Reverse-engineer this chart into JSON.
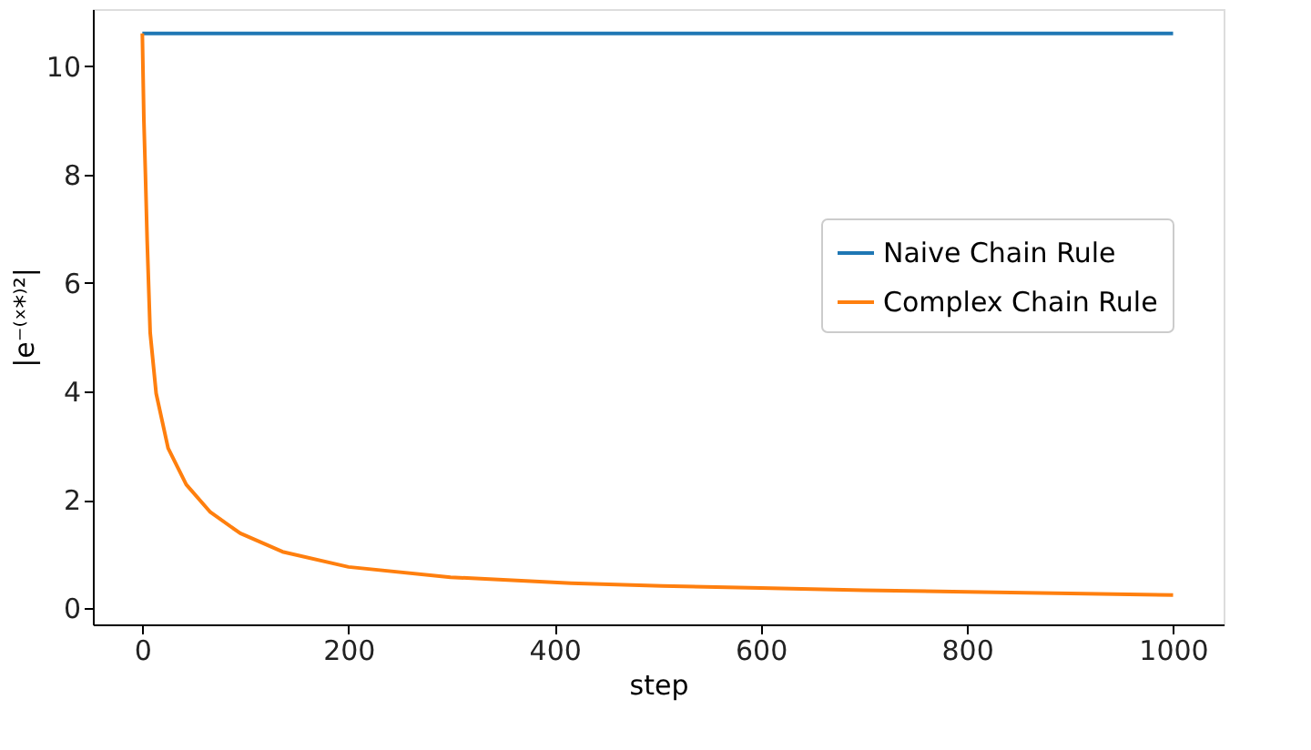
{
  "chart_data": {
    "type": "line",
    "xlabel": "step",
    "ylabel": "|e⁻⁽ˣ*⁾²|",
    "xlim": [
      -48,
      1049
    ],
    "ylim": [
      -0.3,
      11.05
    ],
    "xticks": [
      0,
      200,
      400,
      600,
      800,
      1000
    ],
    "yticks": [
      0,
      2,
      4,
      6,
      8,
      10
    ],
    "grid": false,
    "legend": "right",
    "line_style": "solid",
    "marker": "none",
    "series": [
      {
        "name": "Naive Chain Rule",
        "color": "#1f77b4",
        "x": [
          0,
          1000
        ],
        "values": [
          10.6,
          10.6
        ]
      },
      {
        "name": "Complex Chain Rule",
        "color": "#ff7f0e",
        "x": [
          0,
          1.5,
          3,
          4.7,
          7.6,
          13.4,
          25,
          42.6,
          66,
          95,
          136,
          200,
          299,
          416,
          504,
          600,
          700,
          800,
          900,
          1000
        ],
        "values": [
          10.6,
          9.0,
          8.0,
          6.77,
          5.08,
          3.96,
          2.95,
          2.28,
          1.77,
          1.38,
          1.04,
          0.76,
          0.57,
          0.46,
          0.41,
          0.37,
          0.33,
          0.3,
          0.27,
          0.24
        ]
      }
    ]
  }
}
